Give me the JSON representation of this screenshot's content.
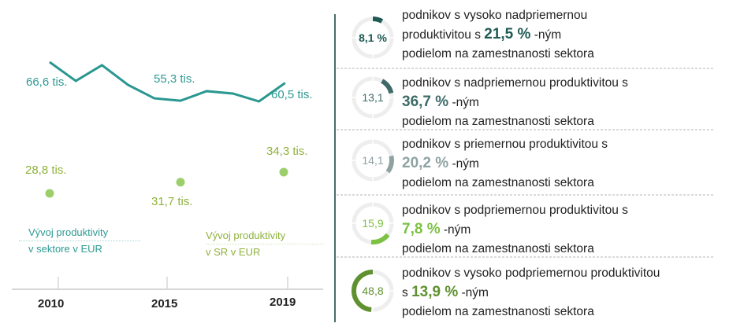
{
  "chart_data": [
    {
      "type": "line",
      "title": "",
      "xlabel": "",
      "ylabel": "",
      "x": [
        2010,
        2011,
        2012,
        2013,
        2014,
        2015,
        2016,
        2017,
        2018,
        2019
      ],
      "x_ticks": [
        "2010",
        "2015",
        "2019"
      ],
      "series": [
        {
          "name": "Vývoj produktivity v sektore v EUR",
          "color": "#2a9790",
          "values": [
            66.6,
            61.1,
            65.7,
            59.9,
            56.0,
            55.3,
            58.1,
            57.4,
            55.1,
            60.5
          ],
          "labels": {
            "2010": "66,6 tis.",
            "2015": "55,3 tis.",
            "2019": "60,5 tis."
          }
        },
        {
          "name": "Vývoj produktivity v SR v EUR",
          "color": "#9ccf6c",
          "points": {
            "2010": 28.8,
            "2015": 31.7,
            "2019": 34.3
          },
          "labels": {
            "2010": "28,8 tis.",
            "2015": "31,7 tis.",
            "2019": "34,3 tis."
          }
        }
      ],
      "legend": {
        "sector_1": "Vývoj produktivity",
        "sector_2": "v sektore v EUR",
        "sr_1": "Vývoj produktivity",
        "sr_2": "v SR v EUR"
      }
    },
    {
      "type": "pie",
      "title": "",
      "rows": [
        {
          "pct": 8.1,
          "label": "8,1 %",
          "color": "#1f5a55",
          "l1": "podnikov s vysoko nadpriemernou",
          "l2a": "produktivitou s",
          "share": "21,5 %",
          "suffix": "-ným",
          "l3": "podielom na zamestnanosti sektora"
        },
        {
          "pct": 13.1,
          "label": "13,1",
          "color": "#3e6a68",
          "l1": "podnikov s nadpriemernou produktivitou s",
          "l2a": "",
          "share": "36,7 %",
          "suffix": "-ným",
          "l3": "podielom na zamestnanosti sektora"
        },
        {
          "pct": 14.1,
          "label": "14,1",
          "color": "#8ea2a2",
          "l1": "podnikov s priemernou produktivitou s",
          "l2a": "",
          "share": "20,2 %",
          "suffix": "-ným",
          "l3": "podielom na zamestnanosti sektora"
        },
        {
          "pct": 15.9,
          "label": "15,9",
          "color": "#7dc142",
          "l1": "podnikov s podpriemernou produktivitou s",
          "l2a": "",
          "share": "7,8 %",
          "suffix": "-ným",
          "l3": "podielom na zamestnanosti sektora"
        },
        {
          "pct": 48.8,
          "label": "48,8",
          "color": "#5f9130",
          "l1": "podnikov s vysoko podpriemernou produktivitou",
          "l2a": "s",
          "share": "13,9 %",
          "suffix": "-ným",
          "l3": "podielom na zamestnanosti sektora"
        }
      ]
    }
  ]
}
